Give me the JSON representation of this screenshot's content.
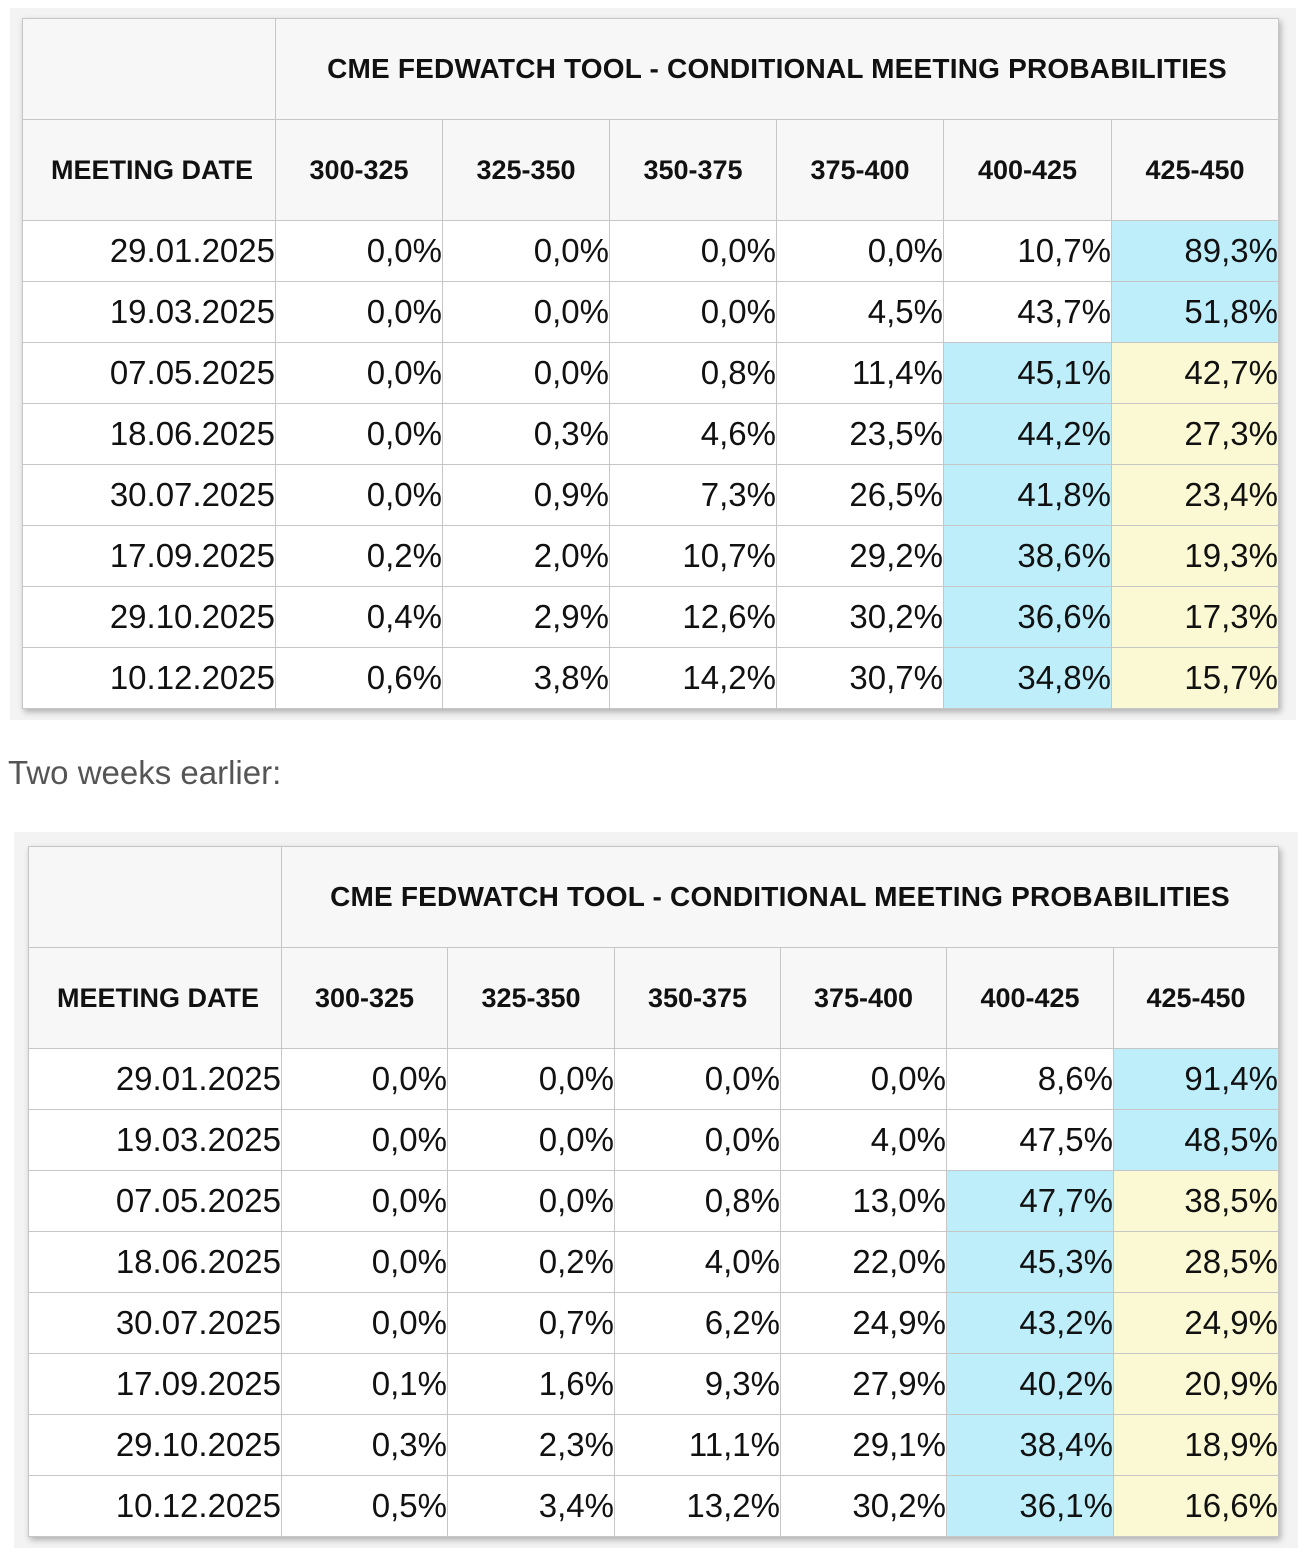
{
  "tables": [
    {
      "title": "CME FEDWATCH TOOL - CONDITIONAL MEETING PROBABILITIES",
      "date_header": "MEETING DATE",
      "columns": [
        "300-325",
        "325-350",
        "350-375",
        "375-400",
        "400-425",
        "425-450"
      ],
      "rows": [
        {
          "date": "29.01.2025",
          "values": [
            "0,0%",
            "0,0%",
            "0,0%",
            "0,0%",
            "10,7%",
            "89,3%"
          ],
          "hl": [
            "",
            "",
            "",
            "",
            "",
            "blue"
          ]
        },
        {
          "date": "19.03.2025",
          "values": [
            "0,0%",
            "0,0%",
            "0,0%",
            "4,5%",
            "43,7%",
            "51,8%"
          ],
          "hl": [
            "",
            "",
            "",
            "",
            "",
            "blue"
          ]
        },
        {
          "date": "07.05.2025",
          "values": [
            "0,0%",
            "0,0%",
            "0,8%",
            "11,4%",
            "45,1%",
            "42,7%"
          ],
          "hl": [
            "",
            "",
            "",
            "",
            "blue",
            "yellow"
          ]
        },
        {
          "date": "18.06.2025",
          "values": [
            "0,0%",
            "0,3%",
            "4,6%",
            "23,5%",
            "44,2%",
            "27,3%"
          ],
          "hl": [
            "",
            "",
            "",
            "",
            "blue",
            "yellow"
          ]
        },
        {
          "date": "30.07.2025",
          "values": [
            "0,0%",
            "0,9%",
            "7,3%",
            "26,5%",
            "41,8%",
            "23,4%"
          ],
          "hl": [
            "",
            "",
            "",
            "",
            "blue",
            "yellow"
          ]
        },
        {
          "date": "17.09.2025",
          "values": [
            "0,2%",
            "2,0%",
            "10,7%",
            "29,2%",
            "38,6%",
            "19,3%"
          ],
          "hl": [
            "",
            "",
            "",
            "",
            "blue",
            "yellow"
          ]
        },
        {
          "date": "29.10.2025",
          "values": [
            "0,4%",
            "2,9%",
            "12,6%",
            "30,2%",
            "36,6%",
            "17,3%"
          ],
          "hl": [
            "",
            "",
            "",
            "",
            "blue",
            "yellow"
          ]
        },
        {
          "date": "10.12.2025",
          "values": [
            "0,6%",
            "3,8%",
            "14,2%",
            "30,7%",
            "34,8%",
            "15,7%"
          ],
          "hl": [
            "",
            "",
            "",
            "",
            "blue",
            "yellow"
          ]
        }
      ]
    },
    {
      "title": "CME FEDWATCH TOOL - CONDITIONAL MEETING PROBABILITIES",
      "date_header": "MEETING DATE",
      "columns": [
        "300-325",
        "325-350",
        "350-375",
        "375-400",
        "400-425",
        "425-450"
      ],
      "rows": [
        {
          "date": "29.01.2025",
          "values": [
            "0,0%",
            "0,0%",
            "0,0%",
            "0,0%",
            "8,6%",
            "91,4%"
          ],
          "hl": [
            "",
            "",
            "",
            "",
            "",
            "blue"
          ]
        },
        {
          "date": "19.03.2025",
          "values": [
            "0,0%",
            "0,0%",
            "0,0%",
            "4,0%",
            "47,5%",
            "48,5%"
          ],
          "hl": [
            "",
            "",
            "",
            "",
            "",
            "blue"
          ]
        },
        {
          "date": "07.05.2025",
          "values": [
            "0,0%",
            "0,0%",
            "0,8%",
            "13,0%",
            "47,7%",
            "38,5%"
          ],
          "hl": [
            "",
            "",
            "",
            "",
            "blue",
            "yellow"
          ]
        },
        {
          "date": "18.06.2025",
          "values": [
            "0,0%",
            "0,2%",
            "4,0%",
            "22,0%",
            "45,3%",
            "28,5%"
          ],
          "hl": [
            "",
            "",
            "",
            "",
            "blue",
            "yellow"
          ]
        },
        {
          "date": "30.07.2025",
          "values": [
            "0,0%",
            "0,7%",
            "6,2%",
            "24,9%",
            "43,2%",
            "24,9%"
          ],
          "hl": [
            "",
            "",
            "",
            "",
            "blue",
            "yellow"
          ]
        },
        {
          "date": "17.09.2025",
          "values": [
            "0,1%",
            "1,6%",
            "9,3%",
            "27,9%",
            "40,2%",
            "20,9%"
          ],
          "hl": [
            "",
            "",
            "",
            "",
            "blue",
            "yellow"
          ]
        },
        {
          "date": "29.10.2025",
          "values": [
            "0,3%",
            "2,3%",
            "11,1%",
            "29,1%",
            "38,4%",
            "18,9%"
          ],
          "hl": [
            "",
            "",
            "",
            "",
            "blue",
            "yellow"
          ]
        },
        {
          "date": "10.12.2025",
          "values": [
            "0,5%",
            "3,4%",
            "13,2%",
            "30,2%",
            "36,1%",
            "16,6%"
          ],
          "hl": [
            "",
            "",
            "",
            "",
            "blue",
            "yellow"
          ]
        }
      ]
    }
  ],
  "between_label": "Two weeks earlier:",
  "colors": {
    "highlight_blue": "#bfeefb",
    "highlight_yellow": "#fbf9d3",
    "header_bg": "#f7f7f7",
    "border": "#c6c6c6"
  },
  "chart_data": [
    {
      "type": "table",
      "title": "CME FEDWATCH TOOL - CONDITIONAL MEETING PROBABILITIES",
      "row_header": "MEETING DATE",
      "columns": [
        "300-325",
        "325-350",
        "350-375",
        "375-400",
        "400-425",
        "425-450"
      ],
      "rows": [
        "29.01.2025",
        "19.03.2025",
        "07.05.2025",
        "18.06.2025",
        "30.07.2025",
        "17.09.2025",
        "29.10.2025",
        "10.12.2025"
      ],
      "values": [
        [
          0.0,
          0.0,
          0.0,
          0.0,
          10.7,
          89.3
        ],
        [
          0.0,
          0.0,
          0.0,
          4.5,
          43.7,
          51.8
        ],
        [
          0.0,
          0.0,
          0.8,
          11.4,
          45.1,
          42.7
        ],
        [
          0.0,
          0.3,
          4.6,
          23.5,
          44.2,
          27.3
        ],
        [
          0.0,
          0.9,
          7.3,
          26.5,
          41.8,
          23.4
        ],
        [
          0.2,
          2.0,
          10.7,
          29.2,
          38.6,
          19.3
        ],
        [
          0.4,
          2.9,
          12.6,
          30.2,
          36.6,
          17.3
        ],
        [
          0.6,
          3.8,
          14.2,
          30.7,
          34.8,
          15.7
        ]
      ]
    },
    {
      "type": "table",
      "title": "CME FEDWATCH TOOL - CONDITIONAL MEETING PROBABILITIES",
      "row_header": "MEETING DATE",
      "columns": [
        "300-325",
        "325-350",
        "350-375",
        "375-400",
        "400-425",
        "425-450"
      ],
      "rows": [
        "29.01.2025",
        "19.03.2025",
        "07.05.2025",
        "18.06.2025",
        "30.07.2025",
        "17.09.2025",
        "29.10.2025",
        "10.12.2025"
      ],
      "values": [
        [
          0.0,
          0.0,
          0.0,
          0.0,
          8.6,
          91.4
        ],
        [
          0.0,
          0.0,
          0.0,
          4.0,
          47.5,
          48.5
        ],
        [
          0.0,
          0.0,
          0.8,
          13.0,
          47.7,
          38.5
        ],
        [
          0.0,
          0.2,
          4.0,
          22.0,
          45.3,
          28.5
        ],
        [
          0.0,
          0.7,
          6.2,
          24.9,
          43.2,
          24.9
        ],
        [
          0.1,
          1.6,
          9.3,
          27.9,
          40.2,
          20.9
        ],
        [
          0.3,
          2.3,
          11.1,
          29.1,
          38.4,
          18.9
        ],
        [
          0.5,
          3.4,
          13.2,
          30.2,
          36.1,
          16.6
        ]
      ]
    }
  ]
}
